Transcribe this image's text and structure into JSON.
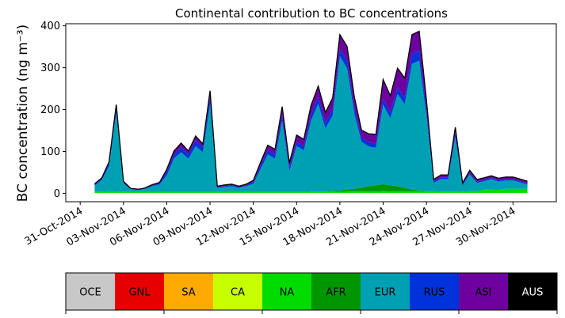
{
  "chart_data": {
    "type": "area",
    "title": "Continental contribution to BC concentrations",
    "ylabel": "BC concentration (ng m⁻³)",
    "xlabel": "",
    "ylim": [
      -20,
      405
    ],
    "yticks": [
      0,
      100,
      200,
      300,
      400
    ],
    "xticks": [
      "31-Oct-2014",
      "03-Nov-2014",
      "06-Nov-2014",
      "09-Nov-2014",
      "12-Nov-2014",
      "15-Nov-2014",
      "18-Nov-2014",
      "21-Nov-2014",
      "24-Nov-2014",
      "27-Nov-2014",
      "30-Nov-2014"
    ],
    "grid": false,
    "stacked": true,
    "legend_position": "below",
    "x": [
      "2014-11-01",
      "2014-11-01T12",
      "2014-11-02",
      "2014-11-02T12",
      "2014-11-03",
      "2014-11-03T12",
      "2014-11-04",
      "2014-11-04T06",
      "2014-11-04T12",
      "2014-11-05",
      "2014-11-05T12",
      "2014-11-06",
      "2014-11-06T12",
      "2014-11-07",
      "2014-11-07T12",
      "2014-11-08",
      "2014-11-08T12",
      "2014-11-09",
      "2014-11-09T12",
      "2014-11-10",
      "2014-11-10T12",
      "2014-11-11",
      "2014-11-11T12",
      "2014-11-12",
      "2014-11-12T12",
      "2014-11-13",
      "2014-11-13T12",
      "2014-11-14",
      "2014-11-14T12",
      "2014-11-15",
      "2014-11-15T12",
      "2014-11-16",
      "2014-11-16T12",
      "2014-11-17",
      "2014-11-17T12",
      "2014-11-18",
      "2014-11-18T12",
      "2014-11-19",
      "2014-11-19T12",
      "2014-11-20",
      "2014-11-20T12",
      "2014-11-21",
      "2014-11-21T12",
      "2014-11-22",
      "2014-11-22T12",
      "2014-11-23",
      "2014-11-23T12",
      "2014-11-24",
      "2014-11-24T12",
      "2014-11-25",
      "2014-11-25T12",
      "2014-11-26",
      "2014-11-26T12",
      "2014-11-27",
      "2014-11-27T12",
      "2014-11-28",
      "2014-11-28T12",
      "2014-11-29",
      "2014-11-29T12",
      "2014-11-30",
      "2014-11-30T12",
      "2014-12-01"
    ],
    "series": [
      {
        "name": "OCE",
        "color": "#c8c8c8",
        "values": [
          0,
          0,
          0,
          0,
          0,
          0,
          0,
          0,
          0,
          0,
          0,
          0,
          0,
          0,
          0,
          0,
          0,
          0,
          0,
          0,
          0,
          0,
          0,
          0,
          0,
          0,
          0,
          0,
          0,
          0,
          0,
          0,
          0,
          0,
          0,
          0,
          0,
          0,
          0,
          0,
          0,
          0,
          0,
          0,
          0,
          0,
          0,
          0,
          0,
          0,
          0,
          0,
          0,
          0,
          0,
          0,
          0,
          0,
          0,
          0,
          0,
          0
        ]
      },
      {
        "name": "GNL",
        "color": "#e60000",
        "values": [
          0,
          0,
          0,
          0,
          0,
          0,
          0,
          0,
          0,
          0,
          0,
          0,
          0,
          0,
          0,
          0,
          0,
          0,
          0,
          0,
          0,
          0,
          0,
          0,
          0,
          0,
          0,
          0,
          0,
          0,
          0,
          0,
          0,
          0,
          0,
          0,
          0,
          0,
          0,
          0,
          0,
          0,
          0,
          0,
          0,
          0,
          0,
          0,
          0,
          0,
          0,
          0,
          0,
          0,
          0,
          0,
          0,
          0,
          0,
          0,
          0,
          0
        ]
      },
      {
        "name": "SA",
        "color": "#ffaa00",
        "values": [
          0,
          0,
          0,
          0,
          0,
          0,
          0,
          0,
          0,
          0,
          0,
          0,
          0,
          0,
          0,
          0,
          0,
          0,
          0,
          0,
          0,
          0,
          0,
          0,
          0,
          0,
          0,
          0,
          0,
          0,
          0,
          0,
          0,
          0,
          0,
          0,
          0,
          0,
          0,
          0,
          0,
          0,
          0,
          0,
          0,
          0,
          0,
          0,
          0,
          0,
          0,
          0,
          0,
          0,
          0,
          0,
          0,
          0,
          0,
          0,
          0,
          0
        ]
      },
      {
        "name": "CA",
        "color": "#c8ff00",
        "values": [
          1,
          1,
          1,
          1,
          1,
          1,
          1,
          1,
          1,
          1,
          1,
          1,
          1,
          1,
          1,
          1,
          1,
          1,
          1,
          1,
          1,
          1,
          1,
          1,
          1,
          1,
          1,
          1,
          1,
          1,
          1,
          1,
          1,
          1,
          1,
          1,
          1,
          1,
          1,
          1,
          1,
          1,
          1,
          1,
          1,
          1,
          1,
          1,
          1,
          1,
          1,
          1,
          1,
          1,
          1,
          1,
          1,
          1,
          1,
          1,
          1,
          1
        ]
      },
      {
        "name": "NA",
        "color": "#00dc00",
        "values": [
          3,
          3,
          4,
          3,
          3,
          3,
          2,
          2,
          2,
          2,
          2,
          2,
          2,
          2,
          2,
          2,
          2,
          2,
          2,
          2,
          2,
          2,
          2,
          2,
          2,
          2,
          2,
          2,
          2,
          2,
          2,
          3,
          3,
          3,
          3,
          3,
          4,
          4,
          4,
          4,
          4,
          5,
          4,
          4,
          4,
          4,
          4,
          4,
          4,
          3,
          3,
          3,
          3,
          4,
          4,
          8,
          8,
          7,
          10,
          10,
          10,
          10
        ]
      },
      {
        "name": "AFR",
        "color": "#009600",
        "values": [
          0,
          0,
          0,
          0,
          0,
          0,
          0,
          0,
          0,
          0,
          0,
          0,
          0,
          0,
          0,
          0,
          0,
          0,
          0,
          0,
          0,
          0,
          0,
          0,
          0,
          0,
          0,
          0,
          0,
          0,
          0,
          0,
          0,
          1,
          2,
          3,
          4,
          6,
          8,
          12,
          14,
          16,
          14,
          12,
          8,
          4,
          2,
          1,
          0,
          0,
          0,
          0,
          0,
          0,
          0,
          0,
          0,
          0,
          0,
          0,
          0,
          0
        ]
      },
      {
        "name": "EUR",
        "color": "#00a0b4",
        "values": [
          14,
          28,
          60,
          190,
          20,
          6,
          5,
          6,
          8,
          14,
          18,
          40,
          80,
          95,
          80,
          110,
          95,
          210,
          10,
          12,
          14,
          10,
          14,
          20,
          55,
          90,
          80,
          170,
          50,
          110,
          100,
          170,
          210,
          150,
          180,
          320,
          290,
          180,
          110,
          95,
          90,
          190,
          160,
          220,
          200,
          300,
          310,
          180,
          20,
          30,
          30,
          130,
          15,
          40,
          20,
          20,
          25,
          20,
          20,
          20,
          15,
          10
        ]
      },
      {
        "name": "RUS",
        "color": "#0032dc",
        "values": [
          3,
          3,
          6,
          10,
          3,
          1,
          1,
          1,
          1,
          2,
          3,
          8,
          10,
          12,
          10,
          14,
          12,
          18,
          2,
          2,
          2,
          2,
          2,
          4,
          8,
          10,
          10,
          14,
          8,
          10,
          10,
          14,
          16,
          14,
          14,
          18,
          18,
          14,
          10,
          10,
          10,
          14,
          14,
          16,
          16,
          24,
          24,
          14,
          3,
          4,
          4,
          12,
          2,
          4,
          3,
          3,
          3,
          3,
          3,
          3,
          3,
          3
        ]
      },
      {
        "name": "ASI",
        "color": "#6e00a0",
        "values": [
          2,
          2,
          4,
          8,
          2,
          1,
          1,
          1,
          1,
          2,
          2,
          6,
          8,
          10,
          8,
          10,
          8,
          14,
          2,
          3,
          3,
          2,
          3,
          4,
          8,
          12,
          12,
          20,
          12,
          16,
          16,
          22,
          26,
          24,
          28,
          34,
          34,
          26,
          18,
          20,
          22,
          46,
          40,
          46,
          46,
          46,
          46,
          24,
          5,
          6,
          6,
          12,
          4,
          6,
          5,
          5,
          5,
          5,
          5,
          5,
          5,
          5
        ]
      },
      {
        "name": "AUS",
        "color": "#000000",
        "values": [
          0,
          0,
          0,
          0,
          0,
          0,
          0,
          0,
          0,
          0,
          0,
          0,
          0,
          0,
          0,
          0,
          0,
          0,
          0,
          0,
          0,
          0,
          0,
          0,
          0,
          0,
          0,
          0,
          0,
          0,
          0,
          0,
          0,
          0,
          0,
          0,
          0,
          0,
          0,
          0,
          0,
          0,
          0,
          0,
          0,
          0,
          0,
          0,
          0,
          0,
          0,
          0,
          0,
          0,
          0,
          0,
          0,
          0,
          0,
          0,
          0,
          0
        ]
      }
    ]
  }
}
